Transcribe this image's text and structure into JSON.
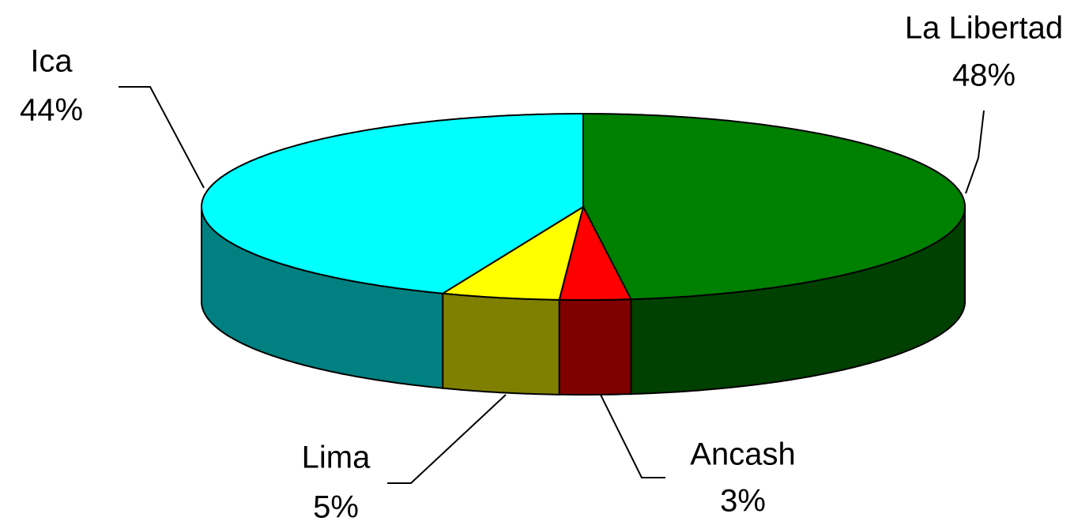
{
  "chart_data": {
    "type": "pie3d",
    "categories": [
      "La Libertad",
      "Ancash",
      "Lima",
      "Ica"
    ],
    "values": [
      48,
      3,
      5,
      44
    ],
    "value_labels": [
      "48%",
      "3%",
      "5%",
      "44%"
    ],
    "colors": [
      "#008000",
      "#ff0000",
      "#ffff00",
      "#00ffff"
    ],
    "side_colors": [
      "#004000",
      "#800000",
      "#808000",
      "#008080"
    ]
  }
}
